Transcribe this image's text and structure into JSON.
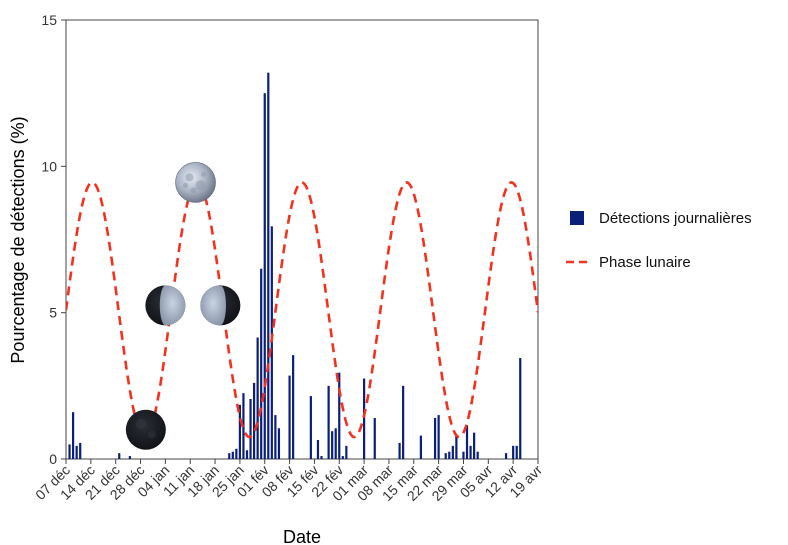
{
  "chart_data": {
    "type": "bar",
    "xlabel": "Date",
    "ylabel": "Pourcentage de détections (%)",
    "ylim": [
      0,
      15
    ],
    "yticks": [
      "0",
      "5",
      "10",
      "15"
    ],
    "x_tick_labels": [
      "07 déc",
      "14 déc",
      "21 déc",
      "28 déc",
      "04 jan",
      "11 jan",
      "18 jan",
      "25 jan",
      "01 fév",
      "08 fév",
      "15 fév",
      "22 fév",
      "01 mar",
      "08 mar",
      "15 mar",
      "22 mar",
      "29 mar",
      "05 avr",
      "12 avr",
      "19 avr"
    ],
    "x_range_days": [
      0,
      133
    ],
    "legend_position": "right",
    "colors": {
      "bars": "#0a1f7a",
      "moon_phase": "#f0321e"
    },
    "series": [
      {
        "name": "Détections journalières",
        "kind": "bar",
        "points": [
          {
            "day": 1,
            "value": 0.5
          },
          {
            "day": 2,
            "value": 1.6
          },
          {
            "day": 3,
            "value": 0.45
          },
          {
            "day": 4,
            "value": 0.55
          },
          {
            "day": 15,
            "value": 0.2
          },
          {
            "day": 18,
            "value": 0.1
          },
          {
            "day": 46,
            "value": 0.2
          },
          {
            "day": 47,
            "value": 0.25
          },
          {
            "day": 48,
            "value": 0.35
          },
          {
            "day": 49,
            "value": 1.85
          },
          {
            "day": 50,
            "value": 2.25
          },
          {
            "day": 51,
            "value": 0.3
          },
          {
            "day": 52,
            "value": 2.05
          },
          {
            "day": 53,
            "value": 2.6
          },
          {
            "day": 54,
            "value": 4.15
          },
          {
            "day": 55,
            "value": 6.5
          },
          {
            "day": 56,
            "value": 12.5
          },
          {
            "day": 57,
            "value": 13.2
          },
          {
            "day": 58,
            "value": 7.95
          },
          {
            "day": 59,
            "value": 1.5
          },
          {
            "day": 60,
            "value": 1.05
          },
          {
            "day": 63,
            "value": 2.85
          },
          {
            "day": 64,
            "value": 3.55
          },
          {
            "day": 69,
            "value": 2.15
          },
          {
            "day": 71,
            "value": 0.65
          },
          {
            "day": 72,
            "value": 0.1
          },
          {
            "day": 74,
            "value": 2.5
          },
          {
            "day": 75,
            "value": 0.95
          },
          {
            "day": 76,
            "value": 1.05
          },
          {
            "day": 77,
            "value": 2.95
          },
          {
            "day": 78,
            "value": 0.1
          },
          {
            "day": 79,
            "value": 0.45
          },
          {
            "day": 84,
            "value": 2.75
          },
          {
            "day": 87,
            "value": 1.4
          },
          {
            "day": 94,
            "value": 0.55
          },
          {
            "day": 95,
            "value": 2.5
          },
          {
            "day": 100,
            "value": 0.8
          },
          {
            "day": 104,
            "value": 1.4
          },
          {
            "day": 105,
            "value": 1.5
          },
          {
            "day": 107,
            "value": 0.2
          },
          {
            "day": 108,
            "value": 0.25
          },
          {
            "day": 109,
            "value": 0.45
          },
          {
            "day": 110,
            "value": 0.8
          },
          {
            "day": 112,
            "value": 0.25
          },
          {
            "day": 113,
            "value": 1.15
          },
          {
            "day": 114,
            "value": 0.45
          },
          {
            "day": 115,
            "value": 0.9
          },
          {
            "day": 116,
            "value": 0.25
          },
          {
            "day": 124,
            "value": 0.2
          },
          {
            "day": 126,
            "value": 0.45
          },
          {
            "day": 127,
            "value": 0.45
          },
          {
            "day": 128,
            "value": 3.45
          }
        ]
      },
      {
        "name": "Phase lunaire",
        "kind": "line",
        "style": "dashed",
        "curve": {
          "mean": 5.1,
          "amplitude": 4.35,
          "period_days": 29.53,
          "peak_day": 7.4
        }
      }
    ],
    "annotations": [
      {
        "kind": "moon-icon",
        "phase": "full-moon",
        "day": 36.5,
        "value": 9.45
      },
      {
        "kind": "moon-icon",
        "phase": "first-quarter",
        "day": 28,
        "value": 5.25
      },
      {
        "kind": "moon-icon",
        "phase": "last-quarter",
        "day": 43.5,
        "value": 5.25
      },
      {
        "kind": "moon-icon",
        "phase": "new-moon",
        "day": 22.5,
        "value": 1.0
      }
    ]
  }
}
